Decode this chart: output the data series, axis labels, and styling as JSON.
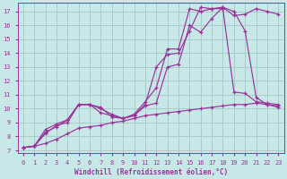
{
  "bg_color": "#c8e8e8",
  "grid_color": "#a8cccc",
  "line_color": "#993399",
  "xlabel": "Windchill (Refroidissement éolien,°C)",
  "ylim": [
    6.8,
    17.6
  ],
  "xlim": [
    -0.5,
    23.5
  ],
  "yticks": [
    7,
    8,
    9,
    10,
    11,
    12,
    13,
    14,
    15,
    16,
    17
  ],
  "xticks": [
    0,
    1,
    2,
    3,
    4,
    5,
    6,
    7,
    8,
    9,
    10,
    11,
    12,
    13,
    14,
    15,
    16,
    17,
    18,
    19,
    20,
    21,
    22,
    23
  ],
  "line1_x": [
    0,
    1,
    2,
    3,
    4,
    5,
    6,
    7,
    8,
    9,
    10,
    11,
    12,
    13,
    14,
    15,
    16,
    17,
    18,
    19,
    20,
    21,
    22,
    23
  ],
  "line1_y": [
    7.2,
    7.3,
    8.3,
    8.7,
    9.2,
    10.3,
    10.3,
    10.0,
    9.6,
    9.3,
    9.6,
    10.5,
    11.5,
    14.3,
    14.3,
    17.2,
    17.0,
    17.2,
    17.2,
    11.2,
    11.1,
    10.5,
    10.4,
    10.3
  ],
  "line2_x": [
    0,
    1,
    2,
    3,
    4,
    5,
    6,
    7,
    8,
    9,
    10,
    11,
    12,
    13,
    14,
    15,
    16,
    17,
    18,
    19,
    20,
    21,
    22,
    23
  ],
  "line2_y": [
    7.2,
    7.3,
    8.5,
    8.9,
    9.2,
    10.3,
    10.3,
    9.7,
    9.5,
    9.3,
    9.5,
    10.3,
    13.0,
    13.9,
    14.0,
    15.6,
    17.3,
    17.2,
    17.3,
    17.0,
    15.6,
    10.8,
    10.3,
    10.1
  ],
  "line3_x": [
    0,
    1,
    2,
    3,
    4,
    5,
    6,
    7,
    8,
    9,
    10,
    11,
    12,
    13,
    14,
    15,
    16,
    17,
    18,
    19,
    20,
    21,
    22,
    23
  ],
  "line3_y": [
    7.2,
    7.3,
    8.2,
    8.8,
    9.0,
    10.3,
    10.3,
    10.1,
    9.4,
    9.3,
    9.5,
    10.2,
    10.4,
    13.0,
    13.2,
    16.0,
    15.5,
    16.5,
    17.3,
    16.7,
    16.8,
    17.2,
    17.0,
    16.8
  ],
  "line4_x": [
    0,
    1,
    2,
    3,
    4,
    5,
    6,
    7,
    8,
    9,
    10,
    11,
    12,
    13,
    14,
    15,
    16,
    17,
    18,
    19,
    20,
    21,
    22,
    23
  ],
  "line4_y": [
    7.2,
    7.3,
    7.5,
    7.8,
    8.2,
    8.6,
    8.7,
    8.8,
    9.0,
    9.1,
    9.3,
    9.5,
    9.6,
    9.7,
    9.8,
    9.9,
    10.0,
    10.1,
    10.2,
    10.3,
    10.3,
    10.4,
    10.3,
    10.2
  ]
}
